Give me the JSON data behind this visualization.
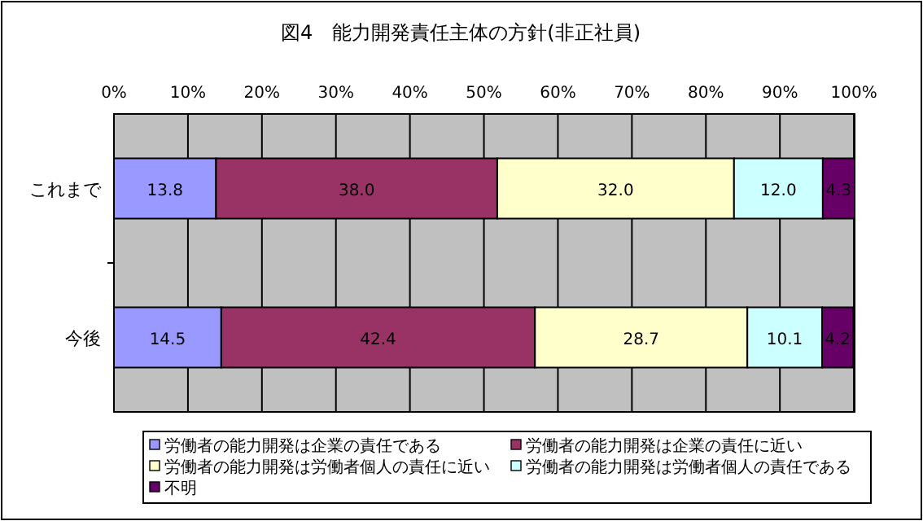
{
  "chart_data": {
    "type": "bar",
    "orientation": "horizontal",
    "stacked": true,
    "title": "図4　能力開発責任主体の方針(非正社員)",
    "categories": [
      "これまで",
      "今後"
    ],
    "series": [
      {
        "name": "労働者の能力開発は企業の責任である",
        "color": "#9999ff",
        "values": [
          13.8,
          14.5
        ],
        "value_labels": [
          "13.8",
          "14.5"
        ]
      },
      {
        "name": "労働者の能力開発は企業の責任に近い",
        "color": "#993366",
        "values": [
          38.0,
          42.4
        ],
        "value_labels": [
          "38.0",
          "42.4"
        ]
      },
      {
        "name": "労働者の能力開発は労働者個人の責任に近い",
        "color": "#ffffcc",
        "values": [
          32.0,
          28.7
        ],
        "value_labels": [
          "32.0",
          "28.7"
        ]
      },
      {
        "name": "労働者の能力開発は労働者個人の責任である",
        "color": "#ccffff",
        "values": [
          12.0,
          10.1
        ],
        "value_labels": [
          "12.0",
          "10.1"
        ]
      },
      {
        "name": "不明",
        "color": "#660066",
        "values": [
          4.3,
          4.2
        ],
        "value_labels": [
          "4.3",
          "4.2"
        ]
      }
    ],
    "xlim": [
      0,
      100.1
    ],
    "xticks": [
      {
        "value": 0,
        "label": "0%"
      },
      {
        "value": 10,
        "label": "10%"
      },
      {
        "value": 20,
        "label": "20%"
      },
      {
        "value": 30,
        "label": "30%"
      },
      {
        "value": 40,
        "label": "40%"
      },
      {
        "value": 50,
        "label": "50%"
      },
      {
        "value": 60,
        "label": "60%"
      },
      {
        "value": 70,
        "label": "70%"
      },
      {
        "value": 80,
        "label": "80%"
      },
      {
        "value": 90,
        "label": "90%"
      },
      {
        "value": 100,
        "label": "100%"
      }
    ],
    "grid": "x",
    "legend": "bottom"
  }
}
